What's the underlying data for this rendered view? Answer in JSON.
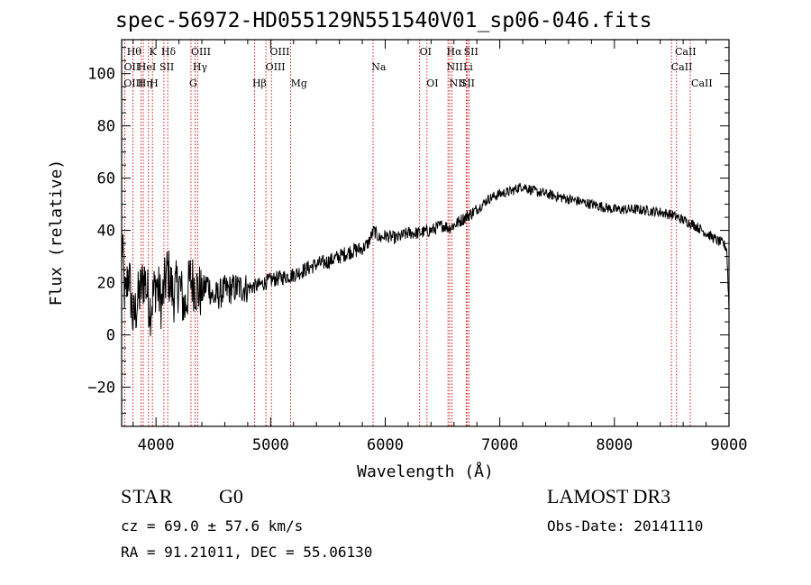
{
  "chart_data": {
    "type": "line",
    "title": "spec-56972-HD055129N551540V01_sp06-046.fits",
    "xlabel": "Wavelength (Å)",
    "ylabel": "Flux (relative)",
    "xlim": [
      3700,
      9000
    ],
    "ylim": [
      -35,
      113
    ],
    "xticks": [
      4000,
      5000,
      6000,
      7000,
      8000,
      9000
    ],
    "yticks": [
      -20,
      0,
      20,
      40,
      60,
      80,
      100
    ],
    "series": [
      {
        "name": "spectrum",
        "x": [
          3700,
          3730,
          3760,
          3800,
          3850,
          3900,
          3950,
          4000,
          4050,
          4100,
          4150,
          4200,
          4250,
          4300,
          4350,
          4400,
          4450,
          4500,
          4600,
          4700,
          4800,
          4900,
          5000,
          5100,
          5200,
          5300,
          5400,
          5500,
          5600,
          5700,
          5800,
          5850,
          5880,
          5900,
          5950,
          6000,
          6100,
          6200,
          6300,
          6400,
          6500,
          6560,
          6600,
          6700,
          6800,
          6900,
          7000,
          7100,
          7200,
          7300,
          7400,
          7500,
          7600,
          7800,
          8000,
          8200,
          8400,
          8500,
          8600,
          8700,
          8800,
          8900,
          8950,
          8980,
          9000
        ],
        "values": [
          38,
          12,
          25,
          5,
          15,
          22,
          10,
          20,
          12,
          25,
          15,
          20,
          10,
          22,
          18,
          16,
          20,
          14,
          17,
          18,
          18,
          19,
          21,
          22,
          23,
          25,
          27,
          28,
          30,
          32,
          33,
          35,
          38,
          40,
          37,
          38,
          37,
          39,
          39,
          40,
          42,
          41,
          42,
          45,
          48,
          52,
          54,
          55,
          57,
          55,
          54,
          53,
          52,
          50,
          48,
          48,
          47,
          46,
          44,
          42,
          39,
          36,
          35,
          33,
          10
        ]
      }
    ],
    "lines": [
      {
        "name": "O II",
        "wavelength": 3727
      },
      {
        "name": "Hθ",
        "wavelength": 3798
      },
      {
        "name": "O III",
        "wavelength": 3869
      },
      {
        "name": "K",
        "wavelength": 3934
      },
      {
        "name": "He I",
        "wavelength": 3889
      },
      {
        "name": "H",
        "wavelength": 3969
      },
      {
        "name": "S II",
        "wavelength": 4069
      },
      {
        "name": "Hδ",
        "wavelength": 4102
      },
      {
        "name": "Hγ",
        "wavelength": 4341
      },
      {
        "name": "O III",
        "wavelength": 4363
      },
      {
        "name": "G",
        "wavelength": 4305
      },
      {
        "name": "Hβ",
        "wavelength": 4861
      },
      {
        "name": "O III",
        "wavelength": 4959
      },
      {
        "name": "O III",
        "wavelength": 5007
      },
      {
        "name": "Mg",
        "wavelength": 5175
      },
      {
        "name": "Na",
        "wavelength": 5894
      },
      {
        "name": "O I",
        "wavelength": 6300
      },
      {
        "name": "O I",
        "wavelength": 6364
      },
      {
        "name": "N II",
        "wavelength": 6548
      },
      {
        "name": "Hα",
        "wavelength": 6563
      },
      {
        "name": "N II",
        "wavelength": 6583
      },
      {
        "name": "Li",
        "wavelength": 6707
      },
      {
        "name": "S II",
        "wavelength": 6717
      },
      {
        "name": "S II",
        "wavelength": 6731
      },
      {
        "name": "Ca II",
        "wavelength": 8498
      },
      {
        "name": "Ca II",
        "wavelength": 8542
      },
      {
        "name": "Ca II",
        "wavelength": 8662
      }
    ],
    "line_labels": [
      {
        "text": "Hθ",
        "row": 0,
        "wl": 3745
      },
      {
        "text": "K",
        "row": 0,
        "wl": 3940
      },
      {
        "text": "Hδ",
        "row": 0,
        "wl": 4045
      },
      {
        "text": "OIII",
        "row": 0,
        "wl": 4305
      },
      {
        "text": "OIII",
        "row": 0,
        "wl": 4993
      },
      {
        "text": "OI",
        "row": 0,
        "wl": 6300
      },
      {
        "text": "Hα",
        "row": 0,
        "wl": 6535
      },
      {
        "text": "SII",
        "row": 0,
        "wl": 6685
      },
      {
        "text": "CaII",
        "row": 0,
        "wl": 8528
      },
      {
        "text": "OII",
        "row": 1,
        "wl": 3720
      },
      {
        "text": "HeI",
        "row": 1,
        "wl": 3840
      },
      {
        "text": "SII",
        "row": 1,
        "wl": 4030
      },
      {
        "text": "Hγ",
        "row": 1,
        "wl": 4320
      },
      {
        "text": "OIII",
        "row": 1,
        "wl": 4955
      },
      {
        "text": "Na",
        "row": 1,
        "wl": 5880
      },
      {
        "text": "NII",
        "row": 1,
        "wl": 6535
      },
      {
        "text": "Li",
        "row": 1,
        "wl": 6680
      },
      {
        "text": "CaII",
        "row": 1,
        "wl": 8495
      },
      {
        "text": "OIII",
        "row": 2,
        "wl": 3718
      },
      {
        "text": "Hη",
        "row": 2,
        "wl": 3840
      },
      {
        "text": "H",
        "row": 2,
        "wl": 3945
      },
      {
        "text": "G",
        "row": 2,
        "wl": 4290
      },
      {
        "text": "Hβ",
        "row": 2,
        "wl": 4840
      },
      {
        "text": "Mg",
        "row": 2,
        "wl": 5175
      },
      {
        "text": "OI",
        "row": 2,
        "wl": 6360
      },
      {
        "text": "NII",
        "row": 2,
        "wl": 6560
      },
      {
        "text": "SII",
        "row": 2,
        "wl": 6655
      },
      {
        "text": "CaII",
        "row": 2,
        "wl": 8670
      }
    ]
  },
  "info": {
    "object_type": "STAR",
    "spectral_class": "G0",
    "survey": "LAMOST DR3",
    "redshift": "cz = 69.0 ± 57.6 km/s",
    "obs_date": "Obs-Date: 20141110",
    "coords": "RA =  91.21011, DEC =  55.06130"
  },
  "colors": {
    "spectrum": "#000000",
    "line_markers": "#cc0000",
    "axes": "#000000"
  }
}
